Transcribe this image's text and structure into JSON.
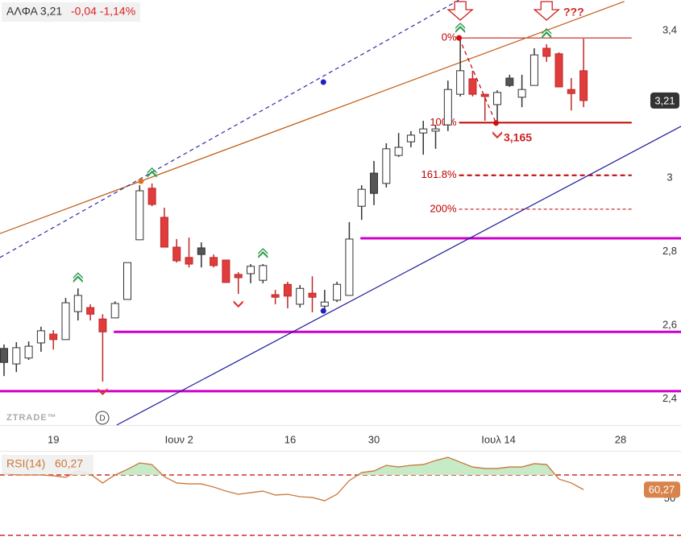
{
  "chart_data": [
    {
      "type": "candlestick",
      "title": "ΑΛΦΑ 3,21",
      "subtitle": "-0,04 -1,14%",
      "watermark": "ZTRADE™",
      "open": [
        2.499,
        2.495,
        2.511,
        2.552,
        2.576,
        2.561,
        2.637,
        2.648,
        2.617,
        2.62,
        2.67,
        2.832,
        2.972,
        2.893,
        2.812,
        2.784,
        2.792,
        2.784,
        2.777,
        2.738,
        2.74,
        2.722,
        2.683,
        2.711,
        2.657,
        2.687,
        2.652,
        2.668,
        2.681,
        2.923,
        2.958,
        2.985,
        3.061,
        3.098,
        3.122,
        3.127,
        3.144,
        3.227,
        3.269,
        3.227,
        3.199,
        3.251,
        3.219,
        3.251,
        3.352,
        3.337,
        3.24,
        3.291
      ],
      "high": [
        2.548,
        2.554,
        2.556,
        2.596,
        2.587,
        2.674,
        2.7,
        2.657,
        2.63,
        2.665,
        2.77,
        2.98,
        2.985,
        2.919,
        2.834,
        2.838,
        2.825,
        2.792,
        2.777,
        2.744,
        2.766,
        2.766,
        2.696,
        2.718,
        2.709,
        2.733,
        2.696,
        2.718,
        2.88,
        2.98,
        3.046,
        3.094,
        3.122,
        3.127,
        3.155,
        3.144,
        3.264,
        3.378,
        3.291,
        3.227,
        3.238,
        3.28,
        3.28,
        3.352,
        3.363,
        3.341,
        3.271,
        3.378
      ],
      "low": [
        2.462,
        2.473,
        2.506,
        2.528,
        2.534,
        2.561,
        2.613,
        2.613,
        2.447,
        2.62,
        2.67,
        2.832,
        2.923,
        2.812,
        2.77,
        2.757,
        2.757,
        2.757,
        2.716,
        2.685,
        2.714,
        2.714,
        2.657,
        2.646,
        2.648,
        2.635,
        2.641,
        2.663,
        2.681,
        2.886,
        2.926,
        2.974,
        3.057,
        3.083,
        3.063,
        3.079,
        3.127,
        3.221,
        3.221,
        3.155,
        3.144,
        3.247,
        3.192,
        3.251,
        3.315,
        3.247,
        3.183,
        3.192
      ],
      "close": [
        2.537,
        2.539,
        2.543,
        2.585,
        2.561,
        2.661,
        2.681,
        2.63,
        2.582,
        2.659,
        2.77,
        2.965,
        2.928,
        2.812,
        2.775,
        2.766,
        2.81,
        2.762,
        2.716,
        2.729,
        2.76,
        2.762,
        2.676,
        2.679,
        2.7,
        2.676,
        2.663,
        2.711,
        2.834,
        2.969,
        3.013,
        3.079,
        3.083,
        3.116,
        3.133,
        3.133,
        3.24,
        3.291,
        3.227,
        3.221,
        3.232,
        3.271,
        3.24,
        3.334,
        3.33,
        3.247,
        3.229,
        3.21
      ],
      "colors": [
        "#555555",
        "#ffffff",
        "#ffffff",
        "#ffffff",
        "#e03c3c",
        "#ffffff",
        "#ffffff",
        "#e03c3c",
        "#e03c3c",
        "#ffffff",
        "#ffffff",
        "#ffffff",
        "#e03c3c",
        "#e03c3c",
        "#e03c3c",
        "#e03c3c",
        "#555555",
        "#e03c3c",
        "#e03c3c",
        "#e03c3c",
        "#ffffff",
        "#ffffff",
        "#e03c3c",
        "#e03c3c",
        "#ffffff",
        "#e03c3c",
        "#ffffff",
        "#ffffff",
        "#ffffff",
        "#ffffff",
        "#555555",
        "#ffffff",
        "#ffffff",
        "#ffffff",
        "#ffffff",
        "#ffffff",
        "#ffffff",
        "#ffffff",
        "#e03c3c",
        "#e03c3c",
        "#ffffff",
        "#555555",
        "#ffffff",
        "#ffffff",
        "#e03c3c",
        "#e03c3c",
        "#e03c3c",
        "#e03c3c"
      ],
      "xlim": [
        -0.327,
        54.9
      ],
      "xticks": [
        {
          "value": 4,
          "label": "19"
        },
        {
          "value": 14.2,
          "label": "Ιουν 2"
        },
        {
          "value": 23.2,
          "label": "16"
        },
        {
          "value": 30,
          "label": "30"
        },
        {
          "value": 40.1,
          "label": "Ιουλ 14"
        },
        {
          "value": 50,
          "label": "28"
        }
      ],
      "ylim": [
        2.329,
        3.483
      ],
      "yticks": [
        {
          "value": 3.4,
          "label": "3,4"
        },
        3,
        {
          "value": 2.8,
          "label": "2,8"
        },
        {
          "value": 2.6,
          "label": "2,6"
        },
        {
          "value": 2.4,
          "label": "2,4"
        }
      ],
      "last_price": 3.21,
      "last_price_label": "3,21",
      "support_color": "#cc00cc",
      "supports": [
        {
          "value": 2.836,
          "from": 28.9
        },
        {
          "value": 2.582,
          "from": 8.9
        },
        {
          "value": 2.421,
          "from": -0.327
        }
      ],
      "fib_color": "#c00000",
      "fib_from": 36.9,
      "fib_to": 50.9,
      "fib_levels": [
        {
          "ratio": 0,
          "label": "0%",
          "price": 3.38
        },
        {
          "ratio": 100,
          "label": "100%",
          "price": 3.15
        },
        {
          "ratio": 161.8,
          "label": "161.8%",
          "price": 3.007
        },
        {
          "ratio": 200,
          "label": "200%",
          "price": 2.915
        }
      ],
      "low_label": "3,165",
      "question": "???",
      "trendlines": [
        {
          "color": "#c05a10",
          "dash": false,
          "points": [
            [
              -0.327,
              2.849
            ],
            [
              50.3,
              3.479
            ]
          ]
        },
        {
          "color": "#2a2aa8",
          "dash": true,
          "points": [
            [
              -0.327,
              2.784
            ],
            [
              36.9,
              3.483
            ]
          ]
        },
        {
          "color": "#1a1a9a",
          "dash": false,
          "points": [
            [
              9.14,
              2.329
            ],
            [
              54.9,
              3.14
            ]
          ]
        },
        {
          "color": "#c00000",
          "dash": true,
          "points": [
            [
              36.9,
              3.38
            ],
            [
              39.9,
              3.149
            ]
          ]
        }
      ],
      "dots": [
        {
          "x": 11.1,
          "y": 2.991,
          "color": "#e07020"
        },
        {
          "x": 25.9,
          "y": 3.26,
          "color": "#2020c0"
        },
        {
          "x": 25.9,
          "y": 2.639,
          "color": "#2020c0"
        },
        {
          "x": 36.9,
          "y": 3.38,
          "color": "#d01010"
        },
        {
          "x": 39.9,
          "y": 3.149,
          "color": "#d01010"
        }
      ],
      "buy_signals": [
        12,
        6,
        21,
        37,
        44
      ],
      "sell_signals": [
        8,
        19,
        40
      ],
      "warning_signals": [
        37,
        44
      ]
    },
    {
      "type": "line",
      "series": [
        {
          "name": "RSI(14)",
          "color": "#c8783a",
          "values": [
            71.1,
            70,
            70,
            70,
            69.5,
            68.4,
            72.7,
            70.5,
            64.7,
            70,
            73.7,
            78,
            76.9,
            68.9,
            64.7,
            64.1,
            64.1,
            62,
            59.3,
            57.2,
            58.3,
            59.3,
            56.7,
            57.2,
            55.6,
            55.1,
            52.9,
            57.2,
            66.3,
            71.6,
            72.7,
            76.4,
            75.3,
            76.4,
            76.9,
            79.6,
            81.7,
            78.5,
            75.3,
            74.3,
            74.3,
            75.3,
            75.3,
            77.5,
            76.9,
            67.3,
            64.7,
            60.27
          ]
        }
      ],
      "last_value_label": "60,27",
      "ylim": [
        23.6,
        86
      ],
      "yticks": [
        50
      ],
      "levels": [
        70,
        30
      ],
      "level_color": "#c00000",
      "fill_color": "#c6ebc6"
    }
  ]
}
